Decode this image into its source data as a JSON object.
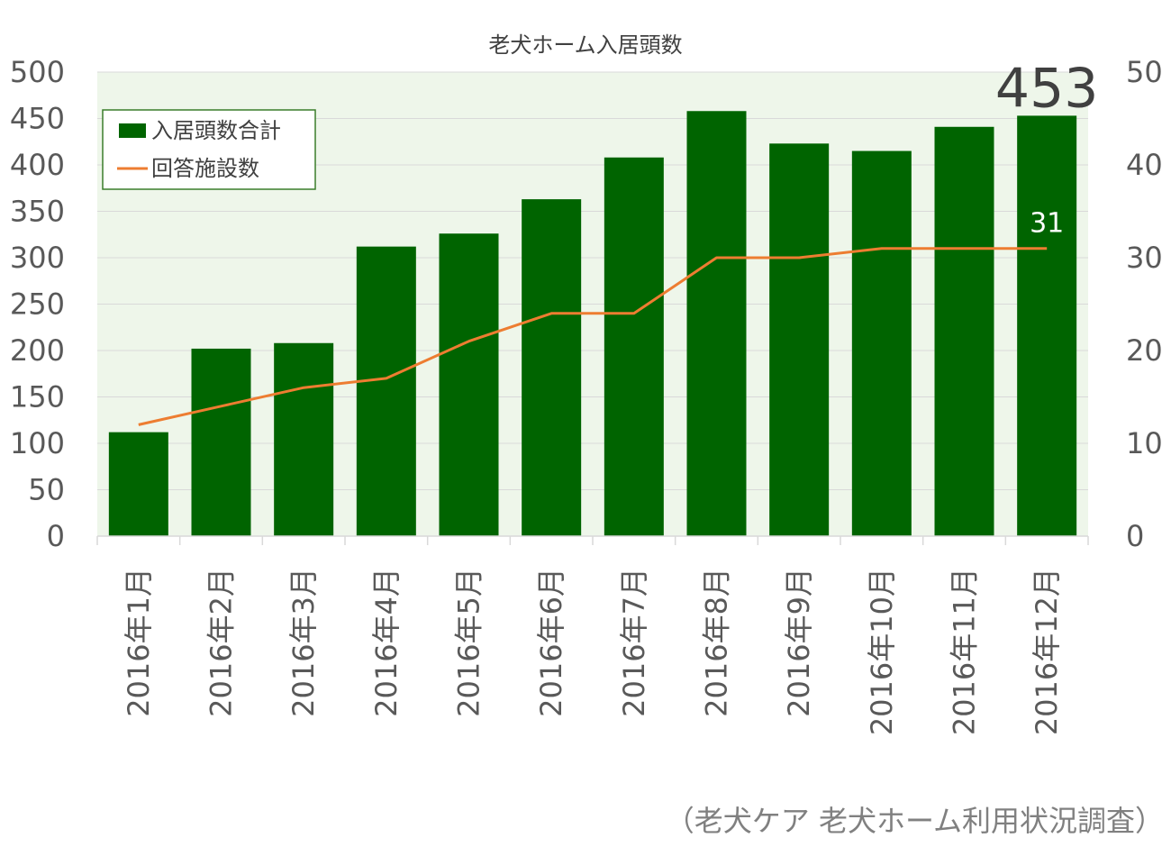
{
  "chart_data": {
    "type": "bar",
    "title": "老犬ホーム入居頭数",
    "categories": [
      "2016年1月",
      "2016年2月",
      "2016年3月",
      "2016年4月",
      "2016年5月",
      "2016年6月",
      "2016年7月",
      "2016年8月",
      "2016年9月",
      "2016年10月",
      "2016年11月",
      "2016年12月"
    ],
    "series": [
      {
        "name": "入居頭数合計",
        "type": "bar",
        "axis": "left",
        "color": "#006400",
        "values": [
          112,
          202,
          208,
          312,
          326,
          363,
          408,
          458,
          423,
          415,
          441,
          453
        ]
      },
      {
        "name": "回答施設数",
        "type": "line",
        "axis": "right",
        "color": "#ED7D31",
        "values": [
          12,
          14,
          16,
          17,
          21,
          24,
          24,
          30,
          30,
          31,
          31,
          31
        ]
      }
    ],
    "y_left": {
      "min": 0,
      "max": 500,
      "ticks": [
        "0",
        "50",
        "100",
        "150",
        "200",
        "250",
        "300",
        "350",
        "400",
        "450",
        "500"
      ]
    },
    "y_right": {
      "min": 0,
      "max": 50,
      "ticks": [
        "0",
        "10",
        "20",
        "30",
        "40",
        "50"
      ]
    },
    "annotations": [
      {
        "series": 0,
        "index": 11,
        "text": "453"
      },
      {
        "series": 1,
        "index": 11,
        "text": "31"
      }
    ],
    "legend_position": "top-left",
    "plot_background": "#EEF6EA",
    "grid": true,
    "source": "（老犬ケア 老犬ホーム利用状況調査）"
  }
}
